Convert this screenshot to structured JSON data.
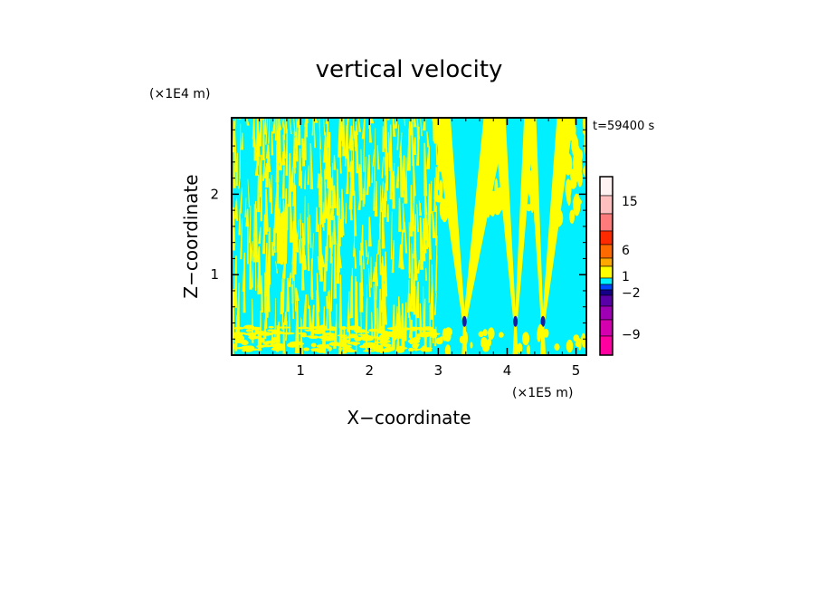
{
  "chart_data": {
    "type": "heatmap",
    "title": "vertical velocity",
    "xlabel": "X−coordinate",
    "ylabel": "Z−coordinate",
    "x_unit": "(×1E5 m)",
    "y_unit": "(×1E4 m)",
    "timestamp": "t=59400 s",
    "xlim": [
      0,
      5.15
    ],
    "ylim": [
      0,
      2.95
    ],
    "x_ticks": [
      1,
      2,
      3,
      4,
      5
    ],
    "x_tick_labels": [
      "1",
      "2",
      "3",
      "4",
      "5"
    ],
    "y_ticks": [
      1,
      2
    ],
    "y_tick_labels": [
      "1",
      "2"
    ],
    "field_colors": {
      "background": "#00f0ff",
      "updraft": "#ffff00",
      "core": "#1a1a9a"
    },
    "colorbar": {
      "labels": [
        {
          "value": 15,
          "text": "15"
        },
        {
          "value": 6,
          "text": "6"
        },
        {
          "value": 1,
          "text": "1"
        },
        {
          "value": -2,
          "text": "−2"
        },
        {
          "value": -9,
          "text": "−9"
        }
      ],
      "levels_top_to_bottom": [
        {
          "color": "#fff2f2"
        },
        {
          "color": "#ffbfbf"
        },
        {
          "color": "#ff7a7a"
        },
        {
          "color": "#ff2a00"
        },
        {
          "color": "#ff6a00"
        },
        {
          "color": "#ffa800"
        },
        {
          "color": "#ffff00"
        },
        {
          "color": "#00f0ff"
        },
        {
          "color": "#0047ff"
        },
        {
          "color": "#15008a"
        },
        {
          "color": "#5a00a8"
        },
        {
          "color": "#a000b4"
        },
        {
          "color": "#d400b0"
        },
        {
          "color": "#ff00a0"
        }
      ]
    }
  }
}
